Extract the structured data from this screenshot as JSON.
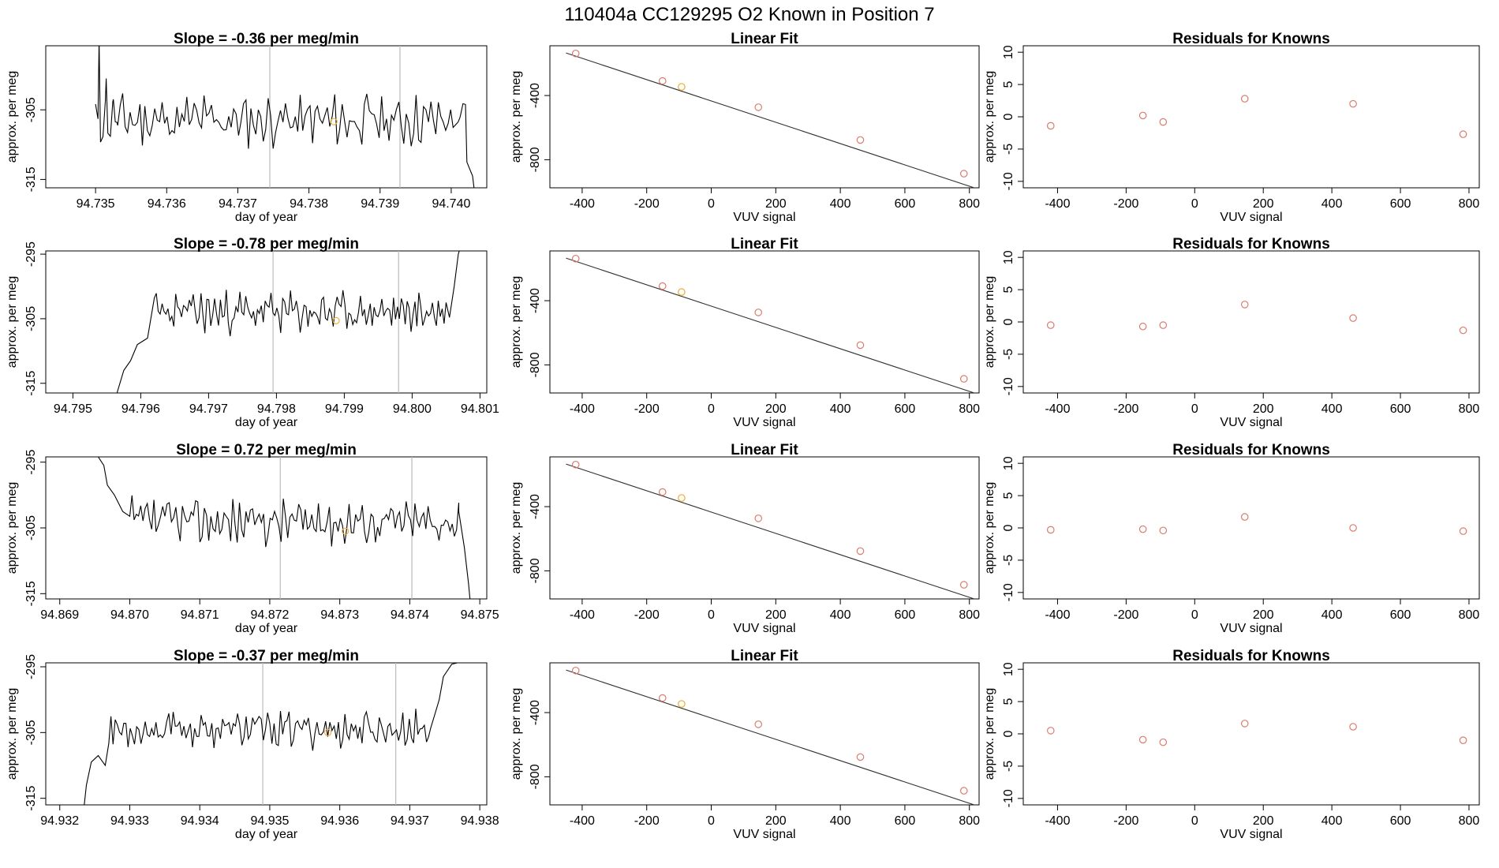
{
  "title": "110404a      CC129295    O2 Known in Position  7",
  "colors": {
    "trace": "#000000",
    "vline": "#bbbbbb",
    "known": "#d97c6e",
    "sample": "#f0b040",
    "fitline": "#333333"
  },
  "rows": [
    {
      "trace": {
        "title": "Slope =  -0.36  per meg/min",
        "xlabel": "day of year",
        "ylabel": "approx. per meg",
        "xlim": [
          94.7343,
          94.7405
        ],
        "ylim": [
          -316.2,
          -295.8
        ],
        "xticks": [
          "94.735",
          "94.736",
          "94.737",
          "94.738",
          "94.739",
          "94.740"
        ],
        "yticks": [
          "-305",
          "-315"
        ],
        "vlines": [
          94.73745,
          94.73928
        ],
        "sample_point": [
          94.73835,
          -306.7
        ],
        "start": 94.735,
        "end": 94.7402,
        "base": -306.5,
        "amp": 2.6,
        "seed": 11,
        "head": [
          [
            94.73505,
            -295.0
          ],
          [
            94.73515,
            -300.5
          ],
          [
            94.73525,
            -303.5
          ],
          [
            94.7353,
            -306.8
          ]
        ],
        "tail": [
          [
            94.74012,
            -306.2
          ],
          [
            94.74022,
            -312.5
          ],
          [
            94.7403,
            -314.5
          ],
          [
            94.74032,
            -316.2
          ]
        ]
      },
      "fit": {
        "title": "Linear Fit",
        "xlabel": "VUV signal",
        "ylabel": "approx. per meg",
        "xlim": [
          -500,
          830
        ],
        "ylim": [
          -975,
          -90
        ],
        "xticks": [
          "-400",
          "-200",
          "0",
          "200",
          "400",
          "600",
          "800"
        ],
        "yticks": [
          "-400",
          "-800"
        ],
        "line": [
          [
            -450,
            -135
          ],
          [
            830,
            -985
          ]
        ],
        "knowns": [
          [
            -420,
            -138
          ],
          [
            -151,
            -309
          ],
          [
            146,
            -473
          ],
          [
            462,
            -677
          ],
          [
            783,
            -887
          ]
        ],
        "sample_point": [
          -92,
          -346
        ]
      },
      "resid": {
        "title": "Residuals for Knowns",
        "xlabel": "VUV signal",
        "ylabel": "approx. per meg",
        "xlim": [
          -500,
          830
        ],
        "ylim": [
          -11,
          11
        ],
        "xticks": [
          "-400",
          "-200",
          "0",
          "200",
          "400",
          "600",
          "800"
        ],
        "yticks": [
          "10",
          "5",
          "0",
          "-5",
          "-10"
        ],
        "points": [
          [
            -420,
            -1.4
          ],
          [
            -151,
            0.2
          ],
          [
            -92,
            -0.8
          ],
          [
            146,
            2.8
          ],
          [
            462,
            2.0
          ],
          [
            783,
            -2.7
          ]
        ]
      }
    },
    {
      "trace": {
        "title": "Slope =  -0.78  per meg/min",
        "xlabel": "day of year",
        "ylabel": "approx. per meg",
        "xlim": [
          94.7946,
          94.8011
        ],
        "ylim": [
          -316.5,
          -294.5
        ],
        "xticks": [
          "94.795",
          "94.796",
          "94.797",
          "94.798",
          "94.799",
          "94.800",
          "94.801"
        ],
        "yticks": [
          "-295",
          "-305",
          "-315"
        ],
        "vlines": [
          94.79795,
          94.7998
        ],
        "sample_point": [
          94.79888,
          -305.3
        ],
        "start": 94.7962,
        "end": 94.8005,
        "base": -304.0,
        "amp": 2.3,
        "seed": 23,
        "head": [
          [
            94.79565,
            -316.5
          ],
          [
            94.79575,
            -313.0
          ],
          [
            94.79585,
            -311.5
          ],
          [
            94.79595,
            -309.0
          ],
          [
            94.7961,
            -308.0
          ]
        ],
        "tail": [
          [
            94.80055,
            -304.8
          ],
          [
            94.80062,
            -300.0
          ],
          [
            94.80068,
            -295.0
          ],
          [
            94.8007,
            -294.3
          ]
        ]
      },
      "fit": {
        "title": "Linear Fit",
        "xlabel": "VUV signal",
        "ylabel": "approx. per meg",
        "xlim": [
          -500,
          830
        ],
        "ylim": [
          -975,
          -90
        ],
        "xticks": [
          "-400",
          "-200",
          "0",
          "200",
          "400",
          "600",
          "800"
        ],
        "yticks": [
          "-400",
          "-800"
        ],
        "line": [
          [
            -450,
            -135
          ],
          [
            830,
            -985
          ]
        ],
        "knowns": [
          [
            -420,
            -138
          ],
          [
            -151,
            -309
          ],
          [
            146,
            -473
          ],
          [
            462,
            -677
          ],
          [
            783,
            -887
          ]
        ],
        "sample_point": [
          -92,
          -346
        ]
      },
      "resid": {
        "title": "Residuals for Knowns",
        "xlabel": "VUV signal",
        "ylabel": "approx. per meg",
        "xlim": [
          -500,
          830
        ],
        "ylim": [
          -11,
          11
        ],
        "xticks": [
          "-400",
          "-200",
          "0",
          "200",
          "400",
          "600",
          "800"
        ],
        "yticks": [
          "10",
          "5",
          "0",
          "-5",
          "-10"
        ],
        "points": [
          [
            -420,
            -0.5
          ],
          [
            -151,
            -0.7
          ],
          [
            -92,
            -0.5
          ],
          [
            146,
            2.7
          ],
          [
            462,
            0.6
          ],
          [
            783,
            -1.3
          ]
        ]
      }
    },
    {
      "trace": {
        "title": "Slope =  0.72  per meg/min",
        "xlabel": "day of year",
        "ylabel": "approx. per meg",
        "xlim": [
          94.8688,
          94.8751
        ],
        "ylim": [
          -315.8,
          -294.2
        ],
        "xticks": [
          "94.869",
          "94.870",
          "94.871",
          "94.872",
          "94.873",
          "94.874",
          "94.875"
        ],
        "yticks": [
          "-295",
          "-305",
          "-315"
        ],
        "vlines": [
          94.87215,
          94.87403
        ],
        "sample_point": [
          94.87308,
          -305.5
        ],
        "start": 94.87,
        "end": 94.8747,
        "base": -304.0,
        "amp": 2.5,
        "seed": 37,
        "head": [
          [
            94.86955,
            -294.2
          ],
          [
            94.86963,
            -295.5
          ],
          [
            94.86968,
            -298.5
          ],
          [
            94.86978,
            -300.0
          ],
          [
            94.8699,
            -302.5
          ]
        ],
        "tail": [
          [
            94.8747,
            -302.5
          ],
          [
            94.87478,
            -308.0
          ],
          [
            94.87484,
            -313.5
          ],
          [
            94.87486,
            -315.8
          ]
        ]
      },
      "fit": {
        "title": "Linear Fit",
        "xlabel": "VUV signal",
        "ylabel": "approx. per meg",
        "xlim": [
          -500,
          830
        ],
        "ylim": [
          -975,
          -90
        ],
        "xticks": [
          "-400",
          "-200",
          "0",
          "200",
          "400",
          "600",
          "800"
        ],
        "yticks": [
          "-400",
          "-800"
        ],
        "line": [
          [
            -450,
            -135
          ],
          [
            830,
            -985
          ]
        ],
        "knowns": [
          [
            -420,
            -138
          ],
          [
            -151,
            -309
          ],
          [
            146,
            -473
          ],
          [
            462,
            -677
          ],
          [
            783,
            -887
          ]
        ],
        "sample_point": [
          -92,
          -346
        ]
      },
      "resid": {
        "title": "Residuals for Knowns",
        "xlabel": "VUV signal",
        "ylabel": "approx. per meg",
        "xlim": [
          -500,
          830
        ],
        "ylim": [
          -11,
          11
        ],
        "xticks": [
          "-400",
          "-200",
          "0",
          "200",
          "400",
          "600",
          "800"
        ],
        "yticks": [
          "10",
          "5",
          "0",
          "-5",
          "-10"
        ],
        "points": [
          [
            -420,
            -0.3
          ],
          [
            -151,
            -0.2
          ],
          [
            -92,
            -0.4
          ],
          [
            146,
            1.7
          ],
          [
            462,
            0.0
          ],
          [
            783,
            -0.5
          ]
        ]
      }
    },
    {
      "trace": {
        "title": "Slope =  -0.37  per meg/min",
        "xlabel": "day of year",
        "ylabel": "approx. per meg",
        "xlim": [
          94.9318,
          94.9381
        ],
        "ylim": [
          -316.0,
          -294.4
        ],
        "xticks": [
          "94.932",
          "94.933",
          "94.934",
          "94.935",
          "94.936",
          "94.937",
          "94.938"
        ],
        "yticks": [
          "-295",
          "-305",
          "-315"
        ],
        "vlines": [
          94.9349,
          94.9368
        ],
        "sample_point": [
          94.93583,
          -305.0
        ],
        "start": 94.9327,
        "end": 94.9373,
        "base": -304.5,
        "amp": 2.0,
        "seed": 53,
        "head": [
          [
            94.93235,
            -316.0
          ],
          [
            94.93238,
            -313.0
          ],
          [
            94.93245,
            -309.5
          ],
          [
            94.93255,
            -308.5
          ],
          [
            94.93265,
            -310.0
          ]
        ],
        "tail": [
          [
            94.93735,
            -302.5
          ],
          [
            94.93742,
            -300.0
          ],
          [
            94.93748,
            -296.5
          ],
          [
            94.9376,
            -294.6
          ],
          [
            94.93768,
            -294.4
          ]
        ]
      },
      "fit": {
        "title": "Linear Fit",
        "xlabel": "VUV signal",
        "ylabel": "approx. per meg",
        "xlim": [
          -500,
          830
        ],
        "ylim": [
          -975,
          -90
        ],
        "xticks": [
          "-400",
          "-200",
          "0",
          "200",
          "400",
          "600",
          "800"
        ],
        "yticks": [
          "-400",
          "-800"
        ],
        "line": [
          [
            -450,
            -135
          ],
          [
            830,
            -985
          ]
        ],
        "knowns": [
          [
            -420,
            -138
          ],
          [
            -151,
            -309
          ],
          [
            146,
            -473
          ],
          [
            462,
            -677
          ],
          [
            783,
            -887
          ]
        ],
        "sample_point": [
          -92,
          -346
        ]
      },
      "resid": {
        "title": "Residuals for Knowns",
        "xlabel": "VUV signal",
        "ylabel": "approx. per meg",
        "xlim": [
          -500,
          830
        ],
        "ylim": [
          -11,
          11
        ],
        "xticks": [
          "-400",
          "-200",
          "0",
          "200",
          "400",
          "600",
          "800"
        ],
        "yticks": [
          "10",
          "5",
          "0",
          "-5",
          "-10"
        ],
        "points": [
          [
            -420,
            0.5
          ],
          [
            -151,
            -0.9
          ],
          [
            -92,
            -1.3
          ],
          [
            146,
            1.6
          ],
          [
            462,
            1.1
          ],
          [
            783,
            -1.0
          ]
        ]
      }
    }
  ]
}
